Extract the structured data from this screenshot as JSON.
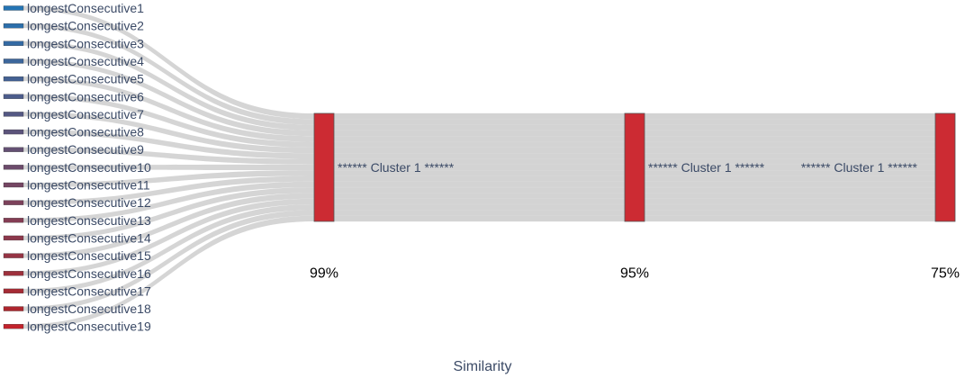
{
  "chart_data": {
    "type": "sankey",
    "title": "",
    "xlabel": "Similarity",
    "sources": [
      {
        "name": "longestConsecutive1",
        "color": "#2474b4"
      },
      {
        "name": "longestConsecutive2",
        "color": "#2c6fab"
      },
      {
        "name": "longestConsecutive3",
        "color": "#346aa3"
      },
      {
        "name": "longestConsecutive4",
        "color": "#3c669b"
      },
      {
        "name": "longestConsecutive5",
        "color": "#446193"
      },
      {
        "name": "longestConsecutive6",
        "color": "#4c5c8b"
      },
      {
        "name": "longestConsecutive7",
        "color": "#545883"
      },
      {
        "name": "longestConsecutive8",
        "color": "#5c547b"
      },
      {
        "name": "longestConsecutive9",
        "color": "#645073"
      },
      {
        "name": "longestConsecutive10",
        "color": "#6c4b6b"
      },
      {
        "name": "longestConsecutive11",
        "color": "#744663"
      },
      {
        "name": "longestConsecutive12",
        "color": "#7c415b"
      },
      {
        "name": "longestConsecutive13",
        "color": "#843d54"
      },
      {
        "name": "longestConsecutive14",
        "color": "#8c384c"
      },
      {
        "name": "longestConsecutive15",
        "color": "#953444"
      },
      {
        "name": "longestConsecutive16",
        "color": "#9d303c"
      },
      {
        "name": "longestConsecutive17",
        "color": "#a52b35"
      },
      {
        "name": "longestConsecutive18",
        "color": "#ad262e"
      },
      {
        "name": "longestConsecutive19",
        "color": "#c2232c"
      }
    ],
    "stages": [
      {
        "label": "99%",
        "node_label": "****** Cluster 1 ******",
        "members": 19
      },
      {
        "label": "95%",
        "node_label": "****** Cluster 1 ******",
        "members": 19
      },
      {
        "label": "75%",
        "node_label": "****** Cluster 1 ******",
        "members": 19
      }
    ],
    "node_color": "#cc2b33",
    "link_color": "#d3d3d3"
  }
}
